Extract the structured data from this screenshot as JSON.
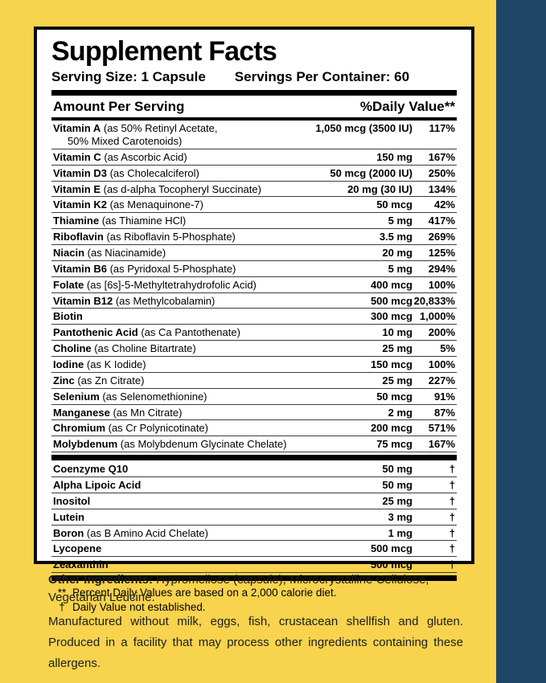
{
  "colors": {
    "background": "#F8D34D",
    "side_stripe": "#1F4567",
    "panel_background": "#FFFFFF",
    "panel_border": "#0B0B0B",
    "text": "#000000"
  },
  "label": {
    "title": "Supplement Facts",
    "serving_size": "Serving Size: 1 Capsule",
    "servings_per_container": "Servings Per Container: 60",
    "amount_header": "Amount Per Serving",
    "dv_header": "%Daily Value**"
  },
  "nutrients_primary": [
    {
      "name": "Vitamin A",
      "desc": "(as 50% Retinyl Acetate,",
      "desc2": "50% Mixed Carotenoids)",
      "amount": "1,050 mcg (3500 IU)",
      "dv": "117%"
    },
    {
      "name": "Vitamin C",
      "desc": "(as Ascorbic Acid)",
      "amount": "150 mg",
      "dv": "167%"
    },
    {
      "name": "Vitamin D3",
      "desc": "(as Cholecalciferol)",
      "amount": "50 mcg (2000 IU)",
      "dv": "250%"
    },
    {
      "name": "Vitamin E",
      "desc": "(as d-alpha Tocopheryl Succinate)",
      "amount": "20 mg (30 IU)",
      "dv": "134%"
    },
    {
      "name": "Vitamin K2",
      "desc": "(as Menaquinone-7)",
      "amount": "50 mcg",
      "dv": "42%"
    },
    {
      "name": "Thiamine",
      "desc": "(as Thiamine HCl)",
      "amount": "5 mg",
      "dv": "417%"
    },
    {
      "name": "Riboflavin",
      "desc": "(as Riboflavin 5-Phosphate)",
      "amount": "3.5 mg",
      "dv": "269%"
    },
    {
      "name": "Niacin",
      "desc": "(as Niacinamide)",
      "amount": "20 mg",
      "dv": "125%"
    },
    {
      "name": "Vitamin B6",
      "desc": "(as Pyridoxal 5-Phosphate)",
      "amount": "5 mg",
      "dv": "294%"
    },
    {
      "name": "Folate",
      "desc": "(as [6s]-5-Methyltetrahydrofolic Acid)",
      "amount": "400 mcg",
      "dv": "100%"
    },
    {
      "name": "Vitamin B12",
      "desc": "(as Methylcobalamin)",
      "amount": "500 mcg",
      "dv": "20,833%"
    },
    {
      "name": "Biotin",
      "desc": "",
      "amount": "300 mcg",
      "dv": "1,000%"
    },
    {
      "name": "Pantothenic Acid",
      "desc": "(as Ca Pantothenate)",
      "amount": "10 mg",
      "dv": "200%"
    },
    {
      "name": "Choline",
      "desc": "(as Choline Bitartrate)",
      "amount": "25 mg",
      "dv": "5%"
    },
    {
      "name": "Iodine",
      "desc": "(as K Iodide)",
      "amount": "150 mcg",
      "dv": "100%"
    },
    {
      "name": "Zinc",
      "desc": "(as Zn Citrate)",
      "amount": "25 mg",
      "dv": "227%"
    },
    {
      "name": "Selenium",
      "desc": "(as Selenomethionine)",
      "amount": "50 mcg",
      "dv": "91%"
    },
    {
      "name": "Manganese",
      "desc": "(as Mn Citrate)",
      "amount": "2 mg",
      "dv": "87%"
    },
    {
      "name": "Chromium",
      "desc": "(as Cr Polynicotinate)",
      "amount": "200 mcg",
      "dv": "571%"
    },
    {
      "name": "Molybdenum",
      "desc": "(as Molybdenum Glycinate Chelate)",
      "amount": "75 mcg",
      "dv": "167%"
    }
  ],
  "nutrients_secondary": [
    {
      "name": "Coenzyme Q10",
      "desc": "",
      "amount": "50 mg",
      "dv": "†"
    },
    {
      "name": "Alpha Lipoic Acid",
      "desc": "",
      "amount": "50 mg",
      "dv": "†"
    },
    {
      "name": "Inositol",
      "desc": "",
      "amount": "25 mg",
      "dv": "†"
    },
    {
      "name": "Lutein",
      "desc": "",
      "amount": "3 mg",
      "dv": "†"
    },
    {
      "name": "Boron",
      "desc": "(as B Amino Acid Chelate)",
      "amount": "1 mg",
      "dv": "†"
    },
    {
      "name": "Lycopene",
      "desc": "",
      "amount": "500 mcg",
      "dv": "†"
    },
    {
      "name": "Zeaxanthin",
      "desc": "",
      "amount": "500 mcg",
      "dv": "†"
    }
  ],
  "footnotes": [
    {
      "symbol": "**",
      "text": "Percent Daily Values are based on a 2,000 calorie diet."
    },
    {
      "symbol": "†",
      "text": "Daily Value not established."
    }
  ],
  "other_ingredients": {
    "label": "Other Ingredients:",
    "text": " Hypromellose (capsule), Microcrystalline Cellulose, Vegetarian Leucine."
  },
  "allergen_statement": "Manufactured without milk, eggs, fish, crustacean shellfish and gluten. Produced in a facility that may process other ingredients containing these allergens."
}
